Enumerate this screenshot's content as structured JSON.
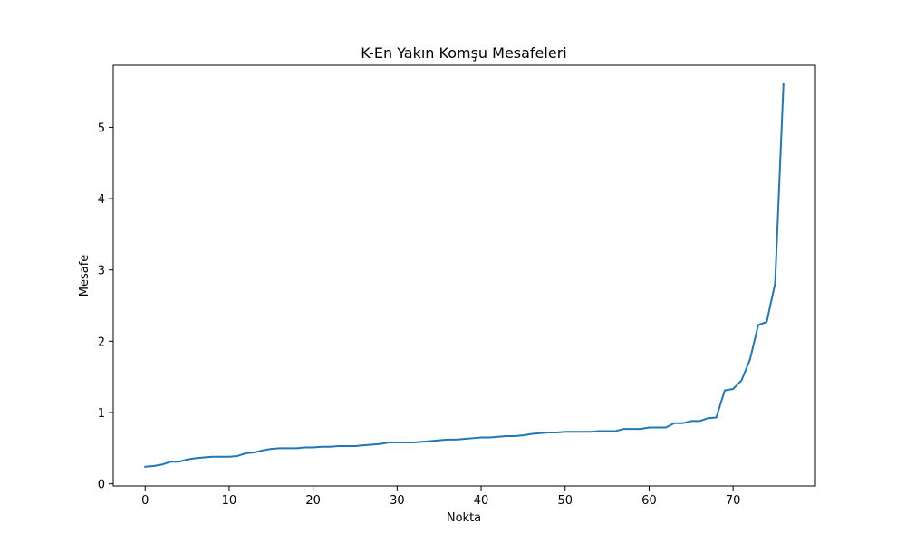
{
  "chart_data": {
    "type": "line",
    "title": "K-En Yakın Komşu Mesafeleri",
    "xlabel": "Nokta",
    "ylabel": "Mesafe",
    "xlim": [
      -3.8,
      79.8
    ],
    "ylim": [
      -0.03,
      5.87
    ],
    "x_ticks": [
      0,
      10,
      20,
      30,
      40,
      50,
      60,
      70
    ],
    "y_ticks": [
      0,
      1,
      2,
      3,
      4,
      5
    ],
    "grid": false,
    "series": [
      {
        "color": "#1f77b4",
        "x": [
          0,
          1,
          2,
          3,
          4,
          5,
          6,
          7,
          8,
          9,
          10,
          11,
          12,
          13,
          14,
          15,
          16,
          17,
          18,
          19,
          20,
          21,
          22,
          23,
          24,
          25,
          26,
          27,
          28,
          29,
          30,
          31,
          32,
          33,
          34,
          35,
          36,
          37,
          38,
          39,
          40,
          41,
          42,
          43,
          44,
          45,
          46,
          47,
          48,
          49,
          50,
          51,
          52,
          53,
          54,
          55,
          56,
          57,
          58,
          59,
          60,
          61,
          62,
          63,
          64,
          65,
          66,
          67,
          68,
          69,
          70,
          71,
          72,
          73,
          74,
          75,
          76
        ],
        "values": [
          0.24,
          0.25,
          0.27,
          0.31,
          0.31,
          0.34,
          0.36,
          0.37,
          0.38,
          0.38,
          0.38,
          0.39,
          0.43,
          0.44,
          0.47,
          0.49,
          0.5,
          0.5,
          0.5,
          0.51,
          0.51,
          0.52,
          0.52,
          0.53,
          0.53,
          0.53,
          0.54,
          0.55,
          0.56,
          0.58,
          0.58,
          0.58,
          0.58,
          0.59,
          0.6,
          0.61,
          0.62,
          0.62,
          0.63,
          0.64,
          0.65,
          0.65,
          0.66,
          0.67,
          0.67,
          0.68,
          0.7,
          0.71,
          0.72,
          0.72,
          0.73,
          0.73,
          0.73,
          0.73,
          0.74,
          0.74,
          0.74,
          0.77,
          0.77,
          0.77,
          0.79,
          0.79,
          0.79,
          0.85,
          0.85,
          0.88,
          0.88,
          0.92,
          0.93,
          1.31,
          1.33,
          1.45,
          1.74,
          2.23,
          2.27,
          2.81,
          5.61
        ]
      }
    ]
  }
}
